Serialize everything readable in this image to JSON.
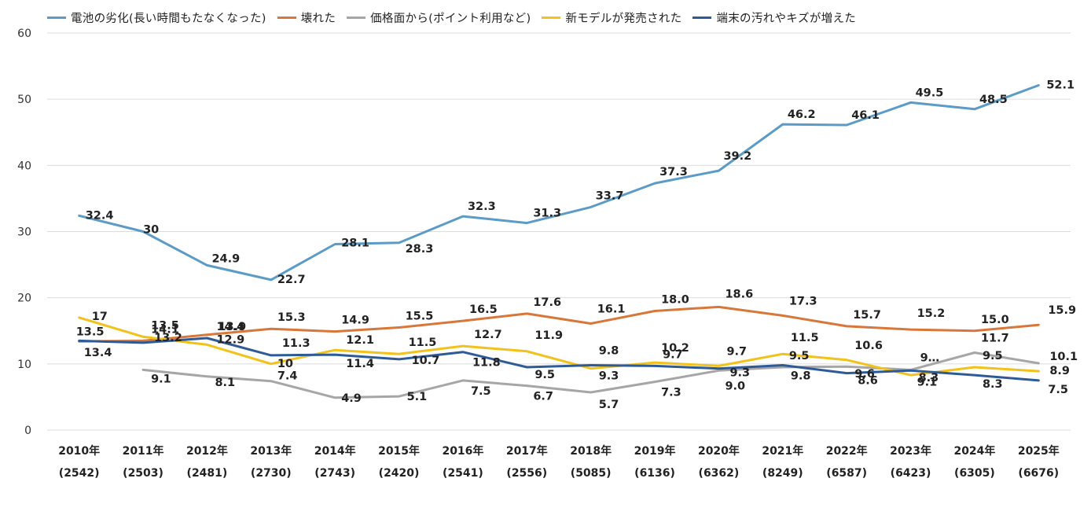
{
  "chart_data": {
    "type": "line",
    "title": "",
    "xlabel": "",
    "ylabel": "",
    "ylim": [
      0,
      60
    ],
    "yticks": [
      "0",
      "10",
      "20",
      "30",
      "40",
      "50",
      "60"
    ],
    "grid": true,
    "legend_position": "top",
    "categories": [
      "2010年",
      "2011年",
      "2012年",
      "2013年",
      "2014年",
      "2015年",
      "2016年",
      "2017年",
      "2018年",
      "2019年",
      "2020年",
      "2021年",
      "2022年",
      "2023年",
      "2024年",
      "2025年"
    ],
    "category_counts": [
      "(2542)",
      "(2503)",
      "(2481)",
      "(2730)",
      "(2743)",
      "(2420)",
      "(2541)",
      "(2556)",
      "(5085)",
      "(6136)",
      "(6362)",
      "(8249)",
      "(6587)",
      "(6423)",
      "(6305)",
      "(6676)"
    ],
    "series": [
      {
        "name": "電池の劣化(長い時間もたなくなった)",
        "color": "#5b9bc8",
        "values": [
          32.4,
          30,
          24.9,
          22.7,
          28.1,
          28.3,
          32.3,
          31.3,
          33.7,
          37.3,
          39.2,
          46.2,
          46.1,
          49.5,
          48.5,
          52.1
        ],
        "labels": [
          "32.4",
          "30",
          "24.9",
          "22.7",
          "28.1",
          "28.3",
          "32.3",
          "31.3",
          "33.7",
          "37.3",
          "39.2",
          "46.2",
          "46.1",
          "49.5",
          "48.5",
          "52.1"
        ]
      },
      {
        "name": "壊れた",
        "color": "#d9773a",
        "values": [
          13.4,
          13.5,
          14.4,
          15.3,
          14.9,
          15.5,
          16.5,
          17.6,
          16.1,
          18.0,
          18.6,
          17.3,
          15.7,
          15.2,
          15.0,
          15.9
        ],
        "labels": [
          "13.4",
          "13.5",
          "14.4",
          "15.3",
          "14.9",
          "15.5",
          "16.5",
          "17.6",
          "16.1",
          "18.0",
          "18.6",
          "17.3",
          "15.7",
          "15.2",
          "15.0",
          "15.9"
        ]
      },
      {
        "name": "価格面から(ポイント利用など)",
        "color": "#a6a6a6",
        "values": [
          null,
          9.1,
          8.1,
          7.4,
          4.9,
          5.1,
          7.5,
          6.7,
          5.7,
          7.3,
          9.0,
          9.5,
          9.6,
          9.1,
          11.7,
          10.1
        ],
        "labels": [
          "",
          "9.1",
          "8.1",
          "7.4",
          "4.9",
          "5.1",
          "7.5",
          "6.7",
          "5.7",
          "7.3",
          "9.0",
          "9.5",
          "9.6",
          "9.1",
          "11.7",
          "10.1"
        ]
      },
      {
        "name": "新モデルが発売された",
        "color": "#f2c21b",
        "values": [
          17,
          14.1,
          12.9,
          10,
          12.1,
          11.5,
          12.7,
          11.9,
          9.3,
          10.2,
          9.7,
          11.5,
          10.6,
          8.3,
          9.5,
          8.9
        ],
        "labels": [
          "17",
          "14.1",
          "12.9",
          "10",
          "12.1",
          "11.5",
          "12.7",
          "11.9",
          "9.3",
          "10.2",
          "9.7",
          "11.5",
          "10.6",
          "8.3",
          "9.5",
          "8.9"
        ]
      },
      {
        "name": "端末の汚れやキズが増えた",
        "color": "#2e5b97",
        "values": [
          13.5,
          13.2,
          13.9,
          11.3,
          11.4,
          10.7,
          11.8,
          9.5,
          9.8,
          9.7,
          9.3,
          9.8,
          8.6,
          9.0,
          8.3,
          7.5
        ],
        "labels": [
          "13.5",
          "13.2",
          "13.9",
          "11.3",
          "11.4",
          "10.7",
          "11.8",
          "9.5",
          "9.8",
          "9.7",
          "9.3",
          "9.8",
          "8.6",
          "9…",
          "8.3",
          "7.5"
        ]
      }
    ]
  }
}
